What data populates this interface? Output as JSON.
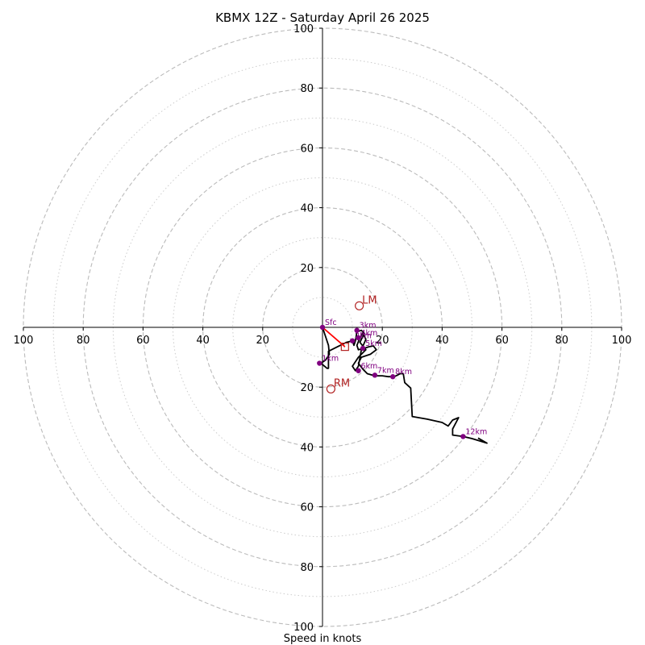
{
  "chart_data": {
    "type": "hodograph",
    "title": "KBMX 12Z - Saturday April 26 2025",
    "xlabel": "Speed in knots",
    "range": [
      -100,
      100
    ],
    "major_rings": [
      20,
      40,
      60,
      80,
      100
    ],
    "minor_rings": [
      10,
      30,
      50,
      70,
      90
    ],
    "x_ticks": [
      {
        "value": -100,
        "label": "100"
      },
      {
        "value": -80,
        "label": "80"
      },
      {
        "value": -60,
        "label": "60"
      },
      {
        "value": -40,
        "label": "40"
      },
      {
        "value": -20,
        "label": "20"
      },
      {
        "value": 20,
        "label": "20"
      },
      {
        "value": 40,
        "label": "40"
      },
      {
        "value": 60,
        "label": "60"
      },
      {
        "value": 80,
        "label": "80"
      },
      {
        "value": 100,
        "label": "100"
      }
    ],
    "y_ticks": [
      {
        "value": 100,
        "label": "100"
      },
      {
        "value": 80,
        "label": "80"
      },
      {
        "value": 60,
        "label": "60"
      },
      {
        "value": 40,
        "label": "40"
      },
      {
        "value": 20,
        "label": "20"
      },
      {
        "value": -20,
        "label": "20"
      },
      {
        "value": -40,
        "label": "40"
      },
      {
        "value": -60,
        "label": "60"
      },
      {
        "value": -80,
        "label": "80"
      },
      {
        "value": -100,
        "label": "100"
      }
    ],
    "trace": [
      [
        0,
        0
      ],
      [
        1,
        -3
      ],
      [
        2,
        -6
      ],
      [
        2.3,
        -9
      ],
      [
        1,
        -11
      ],
      [
        -0.5,
        -12
      ],
      [
        1.5,
        -13.7
      ],
      [
        2,
        -13.7
      ],
      [
        2,
        -8
      ],
      [
        5,
        -6.5
      ],
      [
        8,
        -5
      ],
      [
        10,
        -4.5
      ],
      [
        10.5,
        -6
      ],
      [
        11,
        -4.5
      ],
      [
        11.5,
        -1.5
      ],
      [
        13,
        -1
      ],
      [
        14,
        -2
      ],
      [
        12.5,
        -5
      ],
      [
        14.5,
        -7.5
      ],
      [
        12,
        -10
      ],
      [
        10,
        -13
      ],
      [
        11,
        -14.5
      ],
      [
        12,
        -13
      ],
      [
        13,
        -7.5
      ],
      [
        14.5,
        -4
      ],
      [
        13.5,
        -2
      ],
      [
        12.5,
        -3.5
      ],
      [
        11.5,
        -6
      ],
      [
        12,
        -7.5
      ],
      [
        14,
        -7
      ],
      [
        15.5,
        -6.5
      ],
      [
        17,
        -6.2
      ],
      [
        18,
        -7.5
      ],
      [
        16,
        -9
      ],
      [
        13,
        -10
      ],
      [
        12,
        -12
      ],
      [
        13.5,
        -14
      ],
      [
        15,
        -15.5
      ],
      [
        17.5,
        -16.2
      ],
      [
        20,
        -16.2
      ],
      [
        22,
        -16.5
      ],
      [
        24,
        -16.5
      ],
      [
        26,
        -15.5
      ],
      [
        27,
        -15.5
      ],
      [
        27.5,
        -18.5
      ],
      [
        29.5,
        -20.3
      ],
      [
        30,
        -29.8
      ],
      [
        35,
        -30.7
      ],
      [
        40,
        -31.8
      ],
      [
        42,
        -33
      ],
      [
        43.5,
        -31
      ],
      [
        45.5,
        -30.2
      ],
      [
        43.5,
        -34
      ],
      [
        43.5,
        -36
      ],
      [
        47,
        -36.5
      ],
      [
        50,
        -37.2
      ],
      [
        55,
        -38.7
      ],
      [
        52,
        -37
      ]
    ],
    "height_markers": [
      {
        "label": "Sfc",
        "u": 0,
        "v": 0
      },
      {
        "label": "1km",
        "u": -1,
        "v": -12
      },
      {
        "label": "2km",
        "u": 10,
        "v": -4.5
      },
      {
        "label": "3km",
        "u": 11.5,
        "v": -1
      },
      {
        "label": "4km",
        "u": 12,
        "v": -3.5
      },
      {
        "label": "5km",
        "u": 13.5,
        "v": -7
      },
      {
        "label": "6km",
        "u": 12,
        "v": -14.5
      },
      {
        "label": "7km",
        "u": 17.5,
        "v": -16
      },
      {
        "label": "8km",
        "u": 23.5,
        "v": -16.5
      },
      {
        "label": "12km",
        "u": 47,
        "v": -36.5
      }
    ],
    "storm_motions": [
      {
        "label": "LM",
        "u": 12.3,
        "v": 7.2
      },
      {
        "label": "RM",
        "u": 2.8,
        "v": -20.6
      }
    ],
    "mean_wind": {
      "u": 7.5,
      "v": -6.5
    },
    "shear_vector": {
      "from": {
        "u": 0,
        "v": 0
      },
      "to": {
        "u": 7.5,
        "v": -6.5
      }
    },
    "colors": {
      "trace": "#000000",
      "markers": "#800080",
      "motion": "#b22222",
      "shear": "#ff0000",
      "grid": "#bbbbbb"
    }
  }
}
